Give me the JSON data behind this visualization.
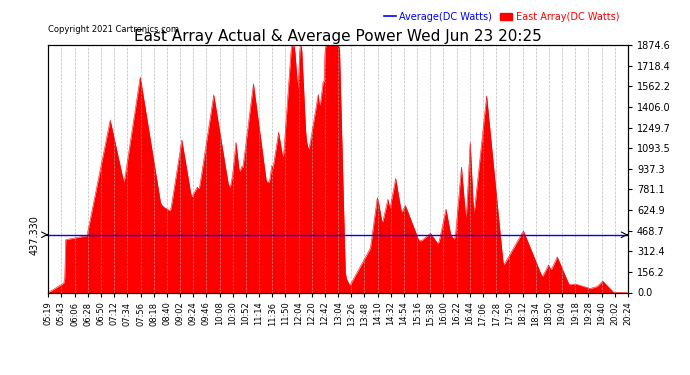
{
  "title": "East Array Actual & Average Power Wed Jun 23 20:25",
  "copyright": "Copyright 2021 Cartronics.com",
  "legend_avg": "Average(DC Watts)",
  "legend_east": "East Array(DC Watts)",
  "avg_line_value": 437.33,
  "y_right_ticks": [
    0.0,
    156.2,
    312.4,
    468.7,
    624.9,
    781.1,
    937.3,
    1093.5,
    1249.7,
    1406.0,
    1562.2,
    1718.4,
    1874.6
  ],
  "y_max": 1874.6,
  "y_min": 0.0,
  "avg_line_label": "437.330",
  "bg_color": "#ffffff",
  "grid_color": "#aaaaaa",
  "fill_color": "#ff0000",
  "avg_color": "#0000ff",
  "east_color": "#ff0000",
  "title_fontsize": 11,
  "x_tick_fontsize": 6,
  "y_tick_fontsize": 7,
  "x_labels": [
    "05:19",
    "05:43",
    "06:06",
    "06:28",
    "06:50",
    "07:12",
    "07:34",
    "07:56",
    "08:18",
    "08:40",
    "09:02",
    "09:24",
    "09:46",
    "10:08",
    "10:30",
    "10:52",
    "11:14",
    "11:36",
    "11:50",
    "12:04",
    "12:20",
    "12:42",
    "13:04",
    "13:26",
    "13:48",
    "14:10",
    "14:32",
    "14:54",
    "15:16",
    "15:38",
    "16:00",
    "16:22",
    "16:44",
    "17:06",
    "17:28",
    "17:50",
    "18:12",
    "18:34",
    "18:50",
    "19:04",
    "19:18",
    "19:28",
    "19:40",
    "20:02",
    "20:24"
  ]
}
